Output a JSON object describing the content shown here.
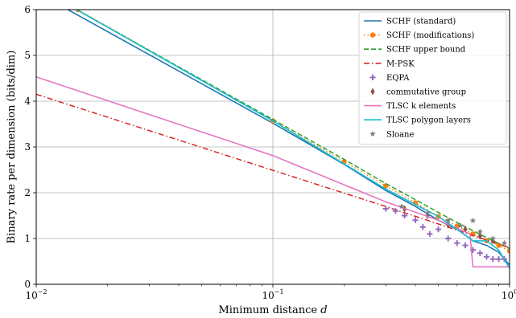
{
  "chart_data": {
    "type": "line",
    "xscale": "log",
    "xlim": [
      0.01,
      1
    ],
    "ylim": [
      0,
      6
    ],
    "xlabel_prefix": "Minimum distance ",
    "xlabel_var": "d",
    "ylabel": "Binary rate per dimension (bits/dim)",
    "grid": true,
    "legend_position": "top-right",
    "x_ticks": [
      {
        "value": 0.01,
        "base": "10",
        "exp": "−2"
      },
      {
        "value": 0.1,
        "base": "10",
        "exp": "−1"
      },
      {
        "value": 1,
        "base": "10",
        "exp": "0"
      }
    ],
    "y_ticks": [
      0,
      1,
      2,
      3,
      4,
      5,
      6
    ],
    "series": [
      {
        "name": "SCHF (standard)",
        "color": "#1f77b4",
        "style": "solid",
        "marker": "none",
        "points": [
          [
            0.0136,
            6.0
          ],
          [
            0.1,
            3.52
          ],
          [
            0.2,
            2.62
          ],
          [
            0.3,
            2.05
          ],
          [
            0.4,
            1.7
          ],
          [
            0.5,
            1.4
          ],
          [
            0.6,
            1.2
          ],
          [
            0.7,
            0.95
          ],
          [
            0.8,
            0.85
          ],
          [
            0.9,
            0.7
          ],
          [
            1.0,
            0.42
          ]
        ]
      },
      {
        "name": "SCHF (modifications)",
        "color": "#ff7f0e",
        "style": "dotted",
        "marker": "circle",
        "points": [
          [
            0.015,
            6.0
          ],
          [
            0.1,
            3.57
          ],
          [
            0.2,
            2.68
          ],
          [
            0.3,
            2.15
          ],
          [
            0.4,
            1.78
          ],
          [
            0.5,
            1.48
          ],
          [
            0.6,
            1.27
          ],
          [
            0.7,
            1.1
          ],
          [
            0.8,
            0.95
          ],
          [
            0.9,
            0.85
          ],
          [
            1.0,
            0.73
          ]
        ]
      },
      {
        "name": "SCHF upper bound",
        "color": "#2ca02c",
        "style": "dashed",
        "marker": "none",
        "points": [
          [
            0.0148,
            6.0
          ],
          [
            0.1,
            3.6
          ],
          [
            0.2,
            2.73
          ],
          [
            0.3,
            2.2
          ],
          [
            0.4,
            1.85
          ],
          [
            0.5,
            1.57
          ],
          [
            0.6,
            1.35
          ],
          [
            0.7,
            1.17
          ],
          [
            0.8,
            1.02
          ],
          [
            0.9,
            0.89
          ],
          [
            1.0,
            0.78
          ]
        ]
      },
      {
        "name": "M-PSK",
        "color": "#d62728",
        "style": "dashdot",
        "marker": "none",
        "points": [
          [
            0.01,
            4.15
          ],
          [
            0.1,
            2.49
          ],
          [
            0.3,
            1.7
          ],
          [
            1.0,
            0.8
          ]
        ]
      },
      {
        "name": "EQPA",
        "color": "#9467bd",
        "style": "none",
        "marker": "plus",
        "points": [
          [
            0.3,
            1.65
          ],
          [
            0.33,
            1.6
          ],
          [
            0.36,
            1.5
          ],
          [
            0.4,
            1.4
          ],
          [
            0.43,
            1.25
          ],
          [
            0.46,
            1.1
          ],
          [
            0.5,
            1.2
          ],
          [
            0.55,
            1.0
          ],
          [
            0.6,
            0.9
          ],
          [
            0.65,
            0.85
          ],
          [
            0.7,
            0.75
          ],
          [
            0.75,
            0.68
          ],
          [
            0.8,
            0.6
          ],
          [
            0.85,
            0.55
          ],
          [
            0.9,
            0.55
          ],
          [
            0.95,
            0.55
          ]
        ]
      },
      {
        "name": "commutative group",
        "color": "#8c564b",
        "style": "none",
        "marker": "diamond",
        "points": [
          [
            0.36,
            1.65
          ],
          [
            0.45,
            1.5
          ],
          [
            0.55,
            1.3
          ],
          [
            0.65,
            1.2
          ],
          [
            0.75,
            1.05
          ],
          [
            0.85,
            0.95
          ]
        ]
      },
      {
        "name": "TLSC k elements",
        "color": "#e377c2",
        "style": "solid",
        "marker": "none",
        "points": [
          [
            0.01,
            4.53
          ],
          [
            0.1,
            2.81
          ],
          [
            0.3,
            1.8
          ],
          [
            0.5,
            1.4
          ],
          [
            0.68,
            1.1
          ],
          [
            0.7,
            0.38
          ],
          [
            1.0,
            0.38
          ]
        ]
      },
      {
        "name": "TLSC polygon layers",
        "color": "#17becf",
        "style": "solid",
        "marker": "none",
        "points": [
          [
            0.0148,
            6.0
          ],
          [
            0.1,
            3.57
          ],
          [
            0.3,
            2.08
          ],
          [
            0.5,
            1.48
          ],
          [
            0.6,
            1.2
          ],
          [
            0.7,
            0.95
          ],
          [
            0.8,
            0.95
          ],
          [
            0.9,
            0.75
          ],
          [
            1.0,
            0.35
          ]
        ]
      },
      {
        "name": "Sloane",
        "color": "#7f7f7f",
        "style": "none",
        "marker": "star",
        "points": [
          [
            0.35,
            1.7
          ],
          [
            0.45,
            1.55
          ],
          [
            0.55,
            1.4
          ],
          [
            0.62,
            1.28
          ],
          [
            0.7,
            1.39
          ],
          [
            0.75,
            1.15
          ],
          [
            0.85,
            1.0
          ],
          [
            0.95,
            0.9
          ]
        ]
      }
    ]
  }
}
